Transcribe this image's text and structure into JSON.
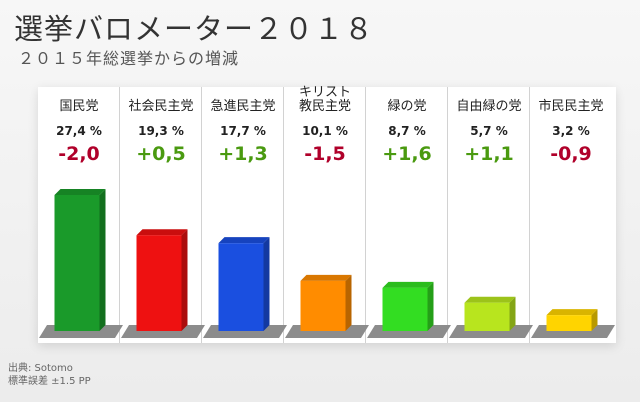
{
  "title": "選挙バロメーター２０１８",
  "subtitle": "２０１５年総選挙からの増減",
  "source_line": "出典: Sotomo",
  "margin_line": "標準誤差 ±1.5 PP",
  "chart_data": {
    "type": "bar",
    "title": "選挙バロメーター２０１８",
    "subtitle": "２０１５年総選挙からの増減",
    "categories": [
      "国民党",
      "社会民主党",
      "急進民主党",
      "キリスト教民主党",
      "緑の党",
      "自由緑の党",
      "市民民主党"
    ],
    "category_lines": [
      [
        "国民党"
      ],
      [
        "社会民主党"
      ],
      [
        "急進民主党"
      ],
      [
        "キリスト",
        "教民主党"
      ],
      [
        "緑の党"
      ],
      [
        "自由緑の党"
      ],
      [
        "市民民主党"
      ]
    ],
    "values": [
      27.4,
      19.3,
      17.7,
      10.1,
      8.7,
      5.7,
      3.2
    ],
    "value_labels": [
      "27,4 %",
      "19,3 %",
      "17,7 %",
      "10,1 %",
      "8,7 %",
      "5,7 %",
      "3,2 %"
    ],
    "changes": [
      -2.0,
      0.5,
      1.3,
      -1.5,
      1.6,
      1.1,
      -0.9
    ],
    "change_labels": [
      "-2,0",
      "+0,5",
      "+1,3",
      "-1,5",
      "+1,6",
      "+1,1",
      "-0,9"
    ],
    "colors": [
      "#1a9a2a",
      "#ee1111",
      "#1a4fe0",
      "#ff8c00",
      "#33dd22",
      "#b8e51e",
      "#ffd400"
    ],
    "positive_color": "#4a9a10",
    "negative_color": "#b0002a",
    "ylim": [
      0,
      30
    ],
    "grid": false
  }
}
